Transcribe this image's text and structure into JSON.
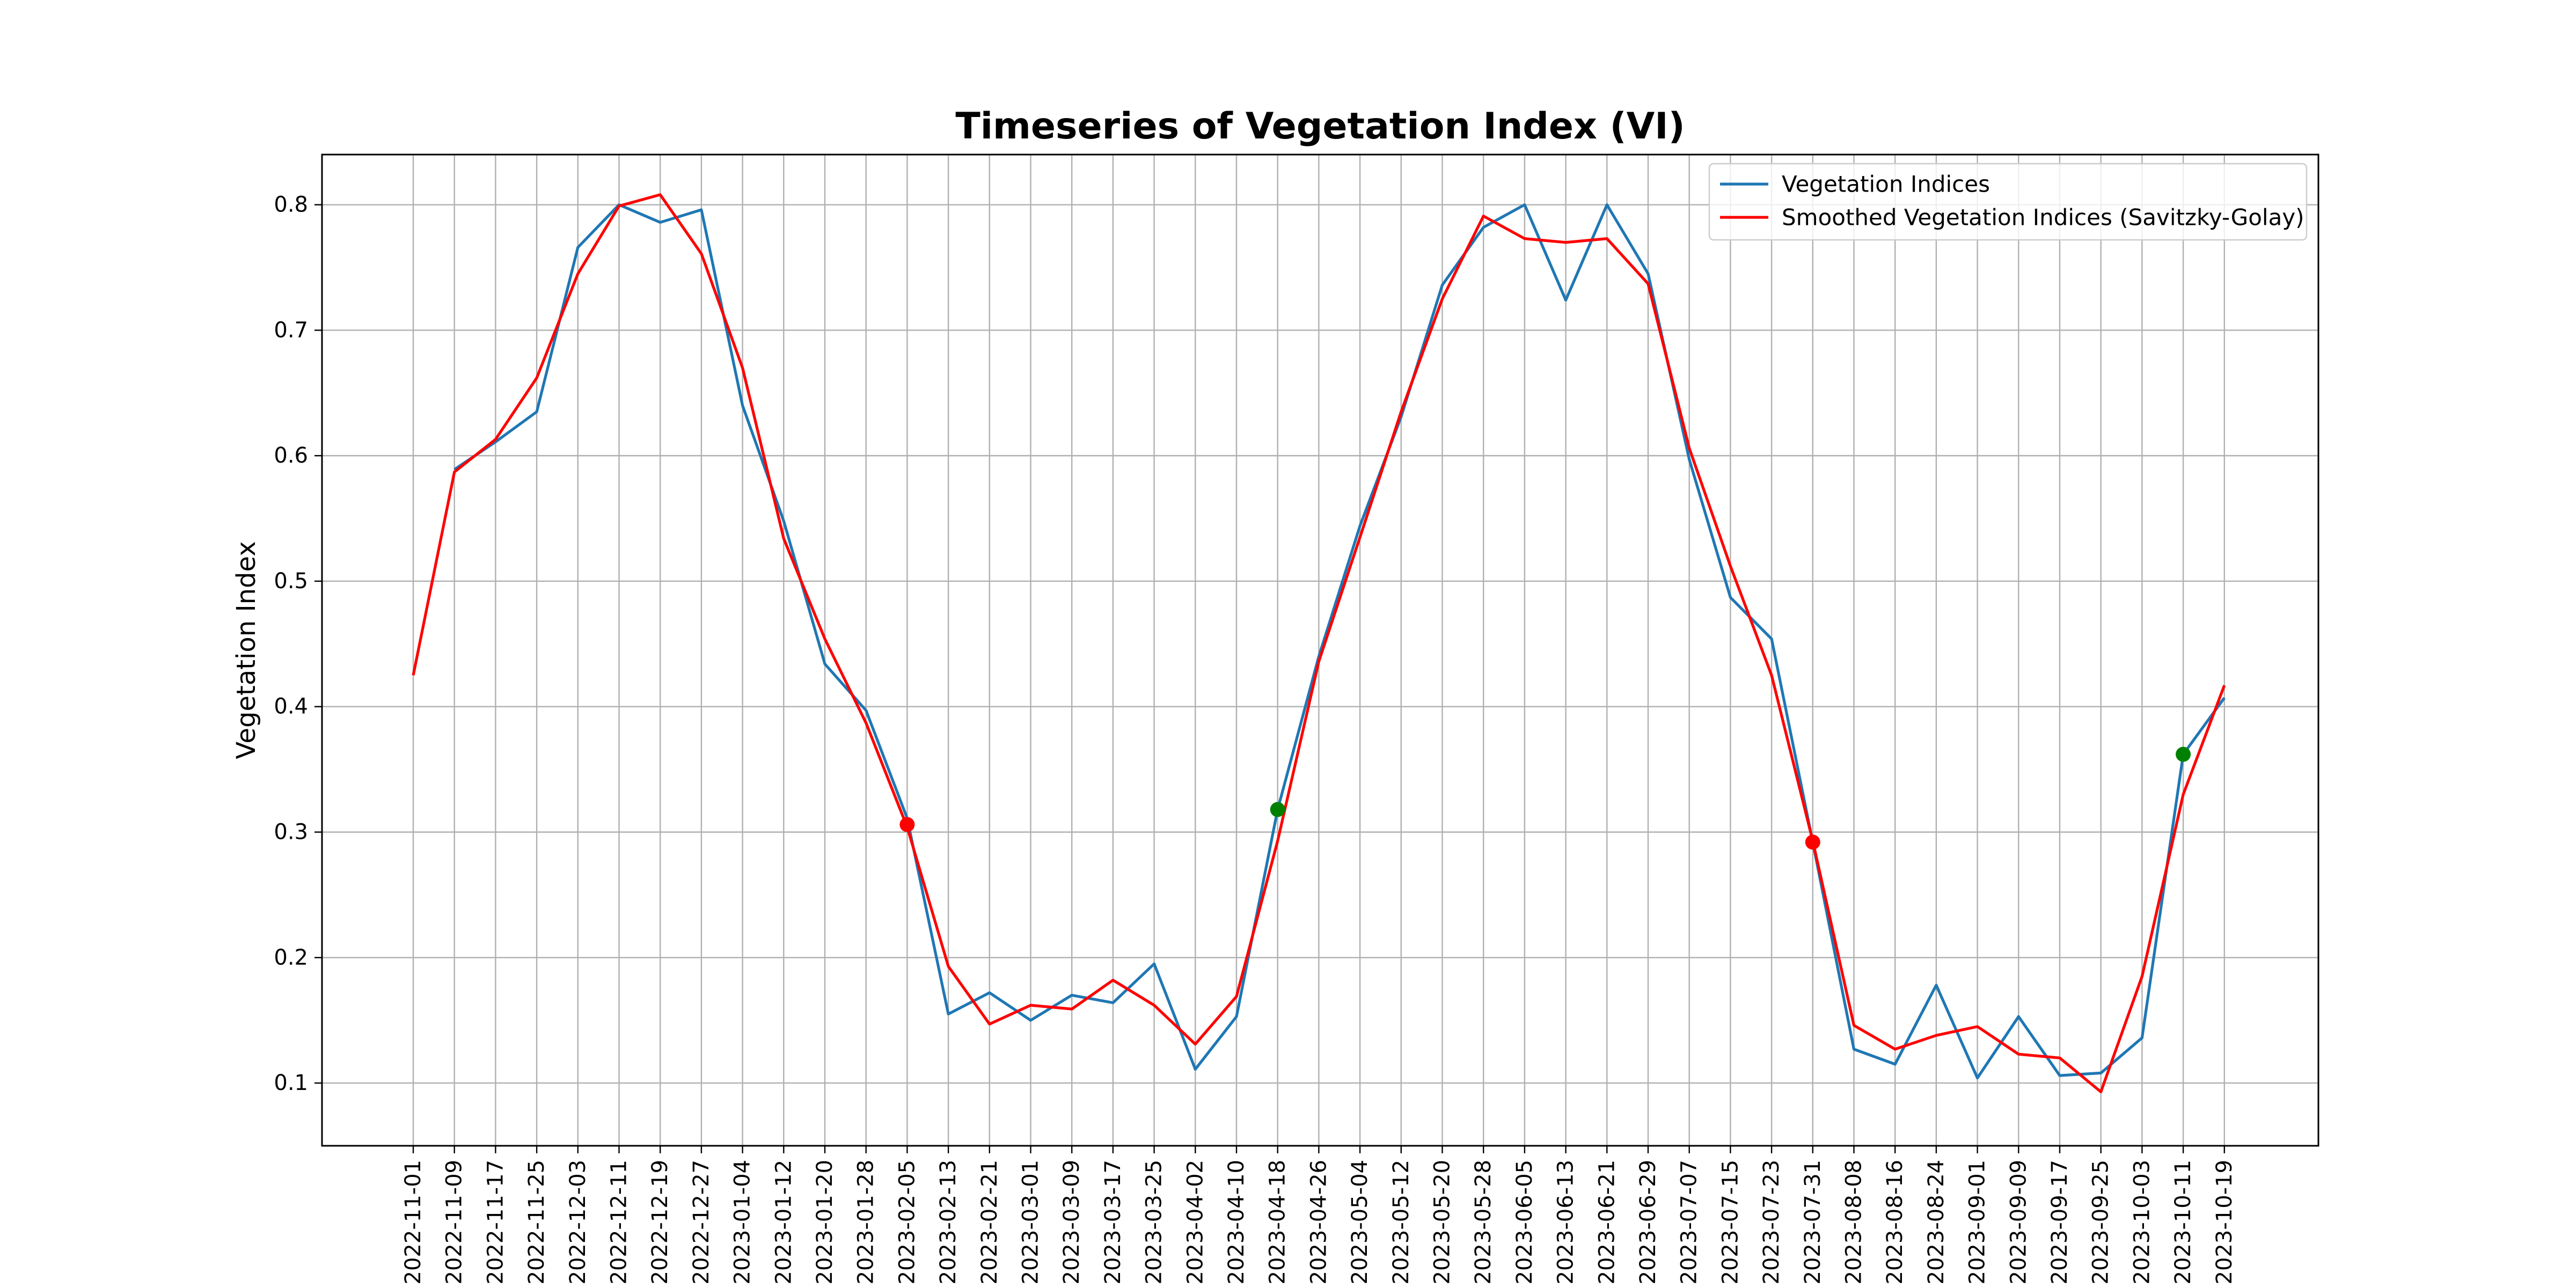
{
  "chart_data": {
    "type": "line",
    "title": "Timeseries of Vegetation Index (VI)",
    "xlabel": "",
    "ylabel": "Vegetation Index",
    "ylim": [
      0.05,
      0.84
    ],
    "yticks": [
      0.1,
      0.2,
      0.3,
      0.4,
      0.5,
      0.6,
      0.7,
      0.8
    ],
    "grid": true,
    "legend_position": "top-right",
    "x": [
      "2022-11-01",
      "2022-11-09",
      "2022-11-17",
      "2022-11-25",
      "2022-12-03",
      "2022-12-11",
      "2022-12-19",
      "2022-12-27",
      "2023-01-04",
      "2023-01-12",
      "2023-01-20",
      "2023-01-28",
      "2023-02-05",
      "2023-02-13",
      "2023-02-21",
      "2023-03-01",
      "2023-03-09",
      "2023-03-17",
      "2023-03-25",
      "2023-04-02",
      "2023-04-10",
      "2023-04-18",
      "2023-04-26",
      "2023-05-04",
      "2023-05-12",
      "2023-05-20",
      "2023-05-28",
      "2023-06-05",
      "2023-06-13",
      "2023-06-21",
      "2023-06-29",
      "2023-07-07",
      "2023-07-15",
      "2023-07-23",
      "2023-07-31",
      "2023-08-08",
      "2023-08-16",
      "2023-08-24",
      "2023-09-01",
      "2023-09-09",
      "2023-09-17",
      "2023-09-25",
      "2023-10-03",
      "2023-10-11",
      "2023-10-19"
    ],
    "series": [
      {
        "name": "Vegetation Indices",
        "color": "#1f77b4",
        "values": [
          null,
          0.589,
          0.611,
          0.635,
          0.766,
          0.8,
          0.786,
          0.796,
          0.64,
          0.548,
          0.434,
          0.397,
          0.311,
          0.155,
          0.172,
          0.15,
          0.17,
          0.164,
          0.195,
          0.111,
          0.153,
          0.318,
          0.44,
          0.544,
          0.631,
          0.736,
          0.782,
          0.8,
          0.724,
          0.8,
          0.745,
          0.597,
          0.487,
          0.454,
          0.292,
          0.127,
          0.115,
          0.178,
          0.104,
          0.153,
          0.106,
          0.108,
          0.136,
          0.362,
          0.407
        ]
      },
      {
        "name": "Smoothed Vegetation Indices (Savitzky-Golay)",
        "color": "#ff0000",
        "values": [
          0.425,
          0.587,
          0.613,
          0.662,
          0.745,
          0.799,
          0.808,
          0.761,
          0.67,
          0.534,
          0.454,
          0.387,
          0.304,
          0.193,
          0.147,
          0.162,
          0.159,
          0.182,
          0.162,
          0.131,
          0.169,
          0.293,
          0.436,
          0.535,
          0.635,
          0.725,
          0.791,
          0.773,
          0.77,
          0.773,
          0.737,
          0.606,
          0.512,
          0.425,
          0.293,
          0.146,
          0.127,
          0.138,
          0.145,
          0.123,
          0.12,
          0.093,
          0.185,
          0.33,
          0.417
        ]
      }
    ],
    "markers": [
      {
        "x": "2023-02-05",
        "y": 0.306,
        "color": "#ff0000"
      },
      {
        "x": "2023-04-18",
        "y": 0.318,
        "color": "#008000"
      },
      {
        "x": "2023-07-31",
        "y": 0.292,
        "color": "#ff0000"
      },
      {
        "x": "2023-10-11",
        "y": 0.362,
        "color": "#008000"
      }
    ]
  }
}
